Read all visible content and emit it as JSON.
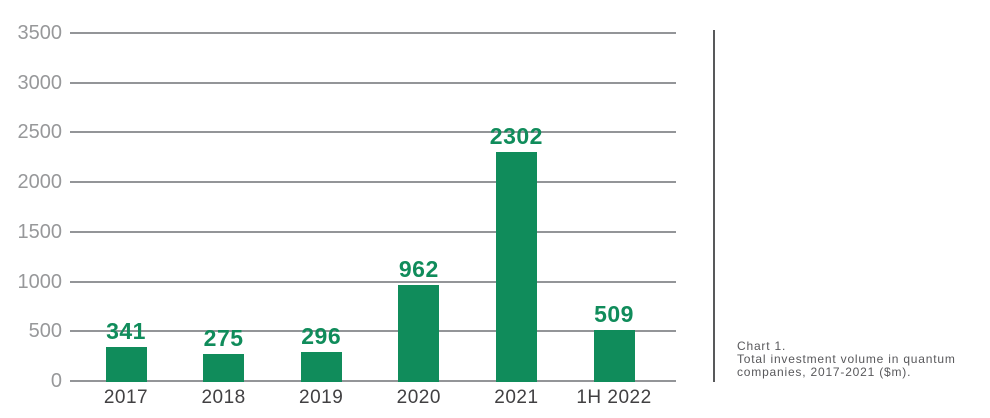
{
  "chart_data": {
    "type": "bar",
    "categories": [
      "2017",
      "2018",
      "2019",
      "2020",
      "2021",
      "1H 2022"
    ],
    "values": [
      341,
      275,
      296,
      962,
      2302,
      509
    ],
    "title": "",
    "xlabel": "",
    "ylabel": "",
    "ylim": [
      0,
      3500
    ],
    "yticks": [
      0,
      500,
      1000,
      1500,
      2000,
      2500,
      3000,
      3500
    ],
    "grid": true,
    "legend": false,
    "value_labels_shown": true,
    "colors": {
      "bar": "#108C5B",
      "value_label": "#108C5B",
      "gridline": "#939598",
      "ytick_label": "#97989A",
      "xtick_label": "#414042"
    }
  },
  "caption": {
    "lines": [
      "Chart 1.",
      "Total investment volume in quantum",
      "companies, 2017-2021 ($m)."
    ],
    "color": "#58585B"
  },
  "divider": {
    "color": "#58595B"
  }
}
